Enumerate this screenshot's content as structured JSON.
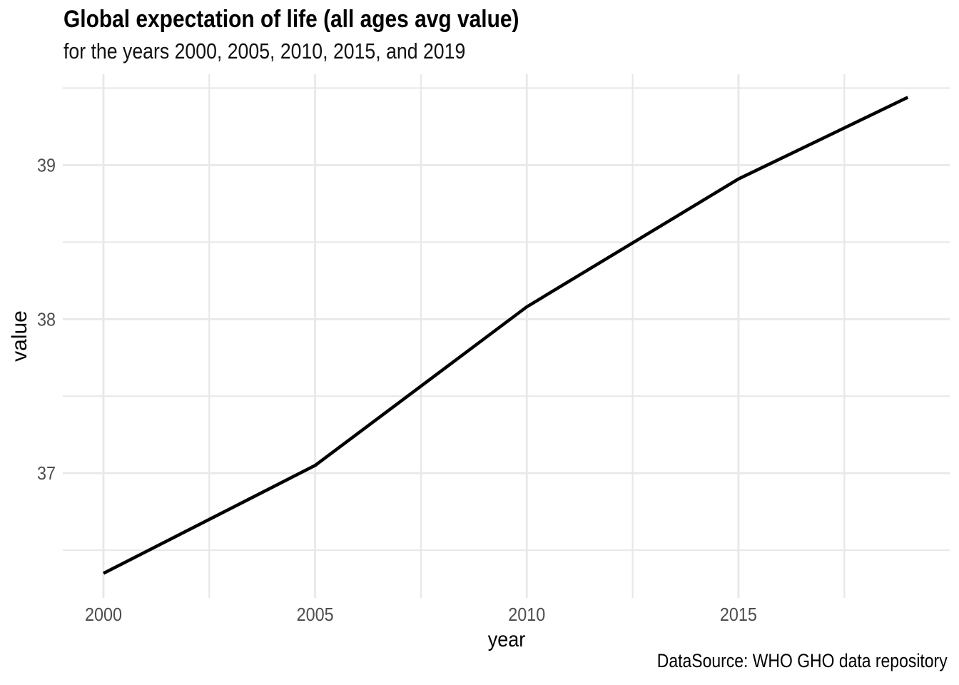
{
  "chart_data": {
    "type": "line",
    "title": "Global expectation of life (all ages avg value)",
    "subtitle": "for the years 2000, 2005, 2010, 2015, and 2019",
    "caption": "DataSource: WHO GHO data repository",
    "xlabel": "year",
    "ylabel": "value",
    "x": [
      2000,
      2005,
      2010,
      2015,
      2019
    ],
    "values": [
      36.35,
      37.05,
      38.08,
      38.91,
      39.44
    ],
    "x_ticks": [
      "2000",
      "2005",
      "2010",
      "2015"
    ],
    "x_tick_values": [
      2000,
      2005,
      2010,
      2015
    ],
    "x_minor": [
      2002.5,
      2007.5,
      2012.5,
      2017.5
    ],
    "y_ticks": [
      "37",
      "38",
      "39"
    ],
    "y_tick_values": [
      37,
      38,
      39
    ],
    "y_minor": [
      36.5,
      37.5,
      38.5,
      39.5
    ],
    "xlim": [
      1999.04,
      2019.99
    ],
    "ylim": [
      36.19,
      39.59
    ],
    "grid": true,
    "legend": false,
    "line_color": "#000000",
    "line_width": 4.5,
    "grid_color": "#e8e8e8",
    "tick_label_color": "#4d4d4d"
  }
}
